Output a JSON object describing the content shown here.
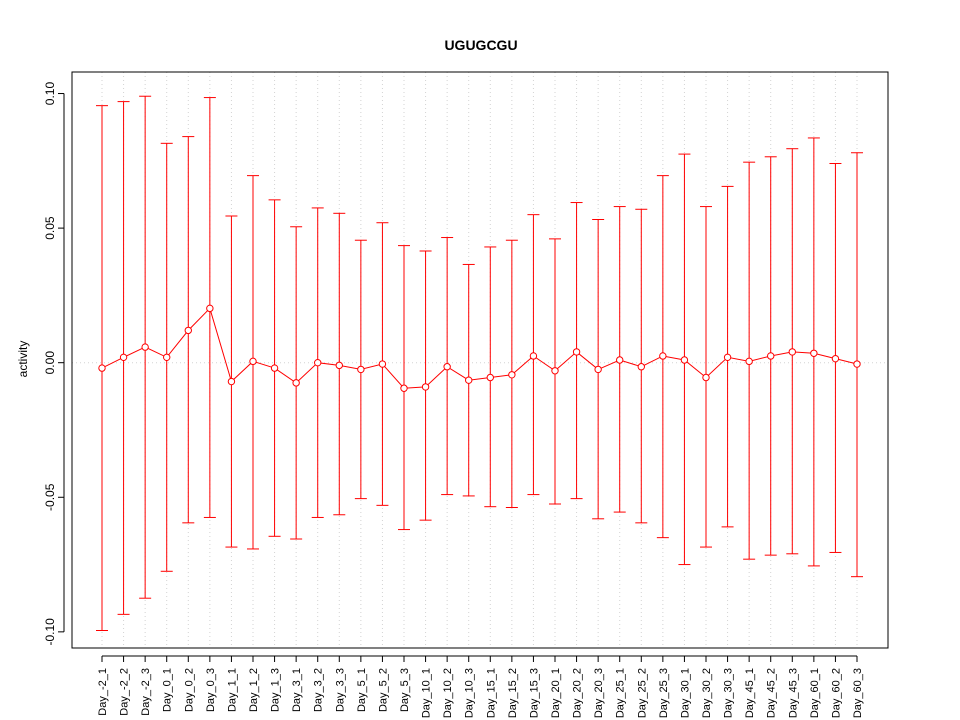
{
  "chart_data": {
    "type": "line",
    "title": "UGUGCGU",
    "xlabel": "",
    "ylabel": "activity",
    "ylim": [
      -0.106,
      0.108
    ],
    "yticks": [
      -0.1,
      -0.05,
      0.0,
      0.05,
      0.1
    ],
    "ytick_labels": [
      "-0.10",
      "-0.05",
      "0.00",
      "0.05",
      "0.10"
    ],
    "grid": true,
    "categories": [
      "Day_-2_1",
      "Day_-2_2",
      "Day_-2_3",
      "Day_0_1",
      "Day_0_2",
      "Day_0_3",
      "Day_1_1",
      "Day_1_2",
      "Day_1_3",
      "Day_3_1",
      "Day_3_2",
      "Day_3_3",
      "Day_5_1",
      "Day_5_2",
      "Day_5_3",
      "Day_10_1",
      "Day_10_2",
      "Day_10_3",
      "Day_15_1",
      "Day_15_2",
      "Day_15_3",
      "Day_20_1",
      "Day_20_2",
      "Day_20_3",
      "Day_25_1",
      "Day_25_2",
      "Day_25_3",
      "Day_30_1",
      "Day_30_2",
      "Day_30_3",
      "Day_45_1",
      "Day_45_2",
      "Day_45_3",
      "Day_60_1",
      "Day_60_2",
      "Day_60_3"
    ],
    "series": [
      {
        "color": "#ff0000",
        "values": [
          -0.002,
          0.002,
          0.0058,
          0.002,
          0.012,
          0.0202,
          -0.007,
          0.0005,
          -0.002,
          -0.0075,
          0.0,
          -0.001,
          -0.0025,
          -0.0005,
          -0.0095,
          -0.009,
          -0.0015,
          -0.0065,
          -0.0055,
          -0.0045,
          0.0025,
          -0.003,
          0.004,
          -0.0025,
          0.001,
          -0.0015,
          0.0025,
          0.001,
          -0.0055,
          0.002,
          0.0005,
          0.0025,
          0.004,
          0.0035,
          0.0015,
          -0.0005
        ],
        "upper": [
          0.0955,
          0.097,
          0.099,
          0.0815,
          0.084,
          0.0985,
          0.0545,
          0.0695,
          0.0605,
          0.0505,
          0.0575,
          0.0555,
          0.0455,
          0.052,
          0.0435,
          0.0415,
          0.0465,
          0.0365,
          0.043,
          0.0455,
          0.055,
          0.046,
          0.0595,
          0.0532,
          0.058,
          0.057,
          0.0695,
          0.0775,
          0.058,
          0.0655,
          0.0745,
          0.0765,
          0.0795,
          0.0835,
          0.074,
          0.078
        ],
        "lower": [
          -0.0995,
          -0.0935,
          -0.0875,
          -0.0775,
          -0.0595,
          -0.0575,
          -0.0685,
          -0.0692,
          -0.0645,
          -0.0655,
          -0.0575,
          -0.0565,
          -0.0505,
          -0.053,
          -0.062,
          -0.0585,
          -0.049,
          -0.0495,
          -0.0535,
          -0.0538,
          -0.049,
          -0.0525,
          -0.0505,
          -0.058,
          -0.0555,
          -0.0595,
          -0.065,
          -0.075,
          -0.0685,
          -0.061,
          -0.073,
          -0.0715,
          -0.071,
          -0.0755,
          -0.0705,
          -0.0795
        ]
      }
    ]
  }
}
